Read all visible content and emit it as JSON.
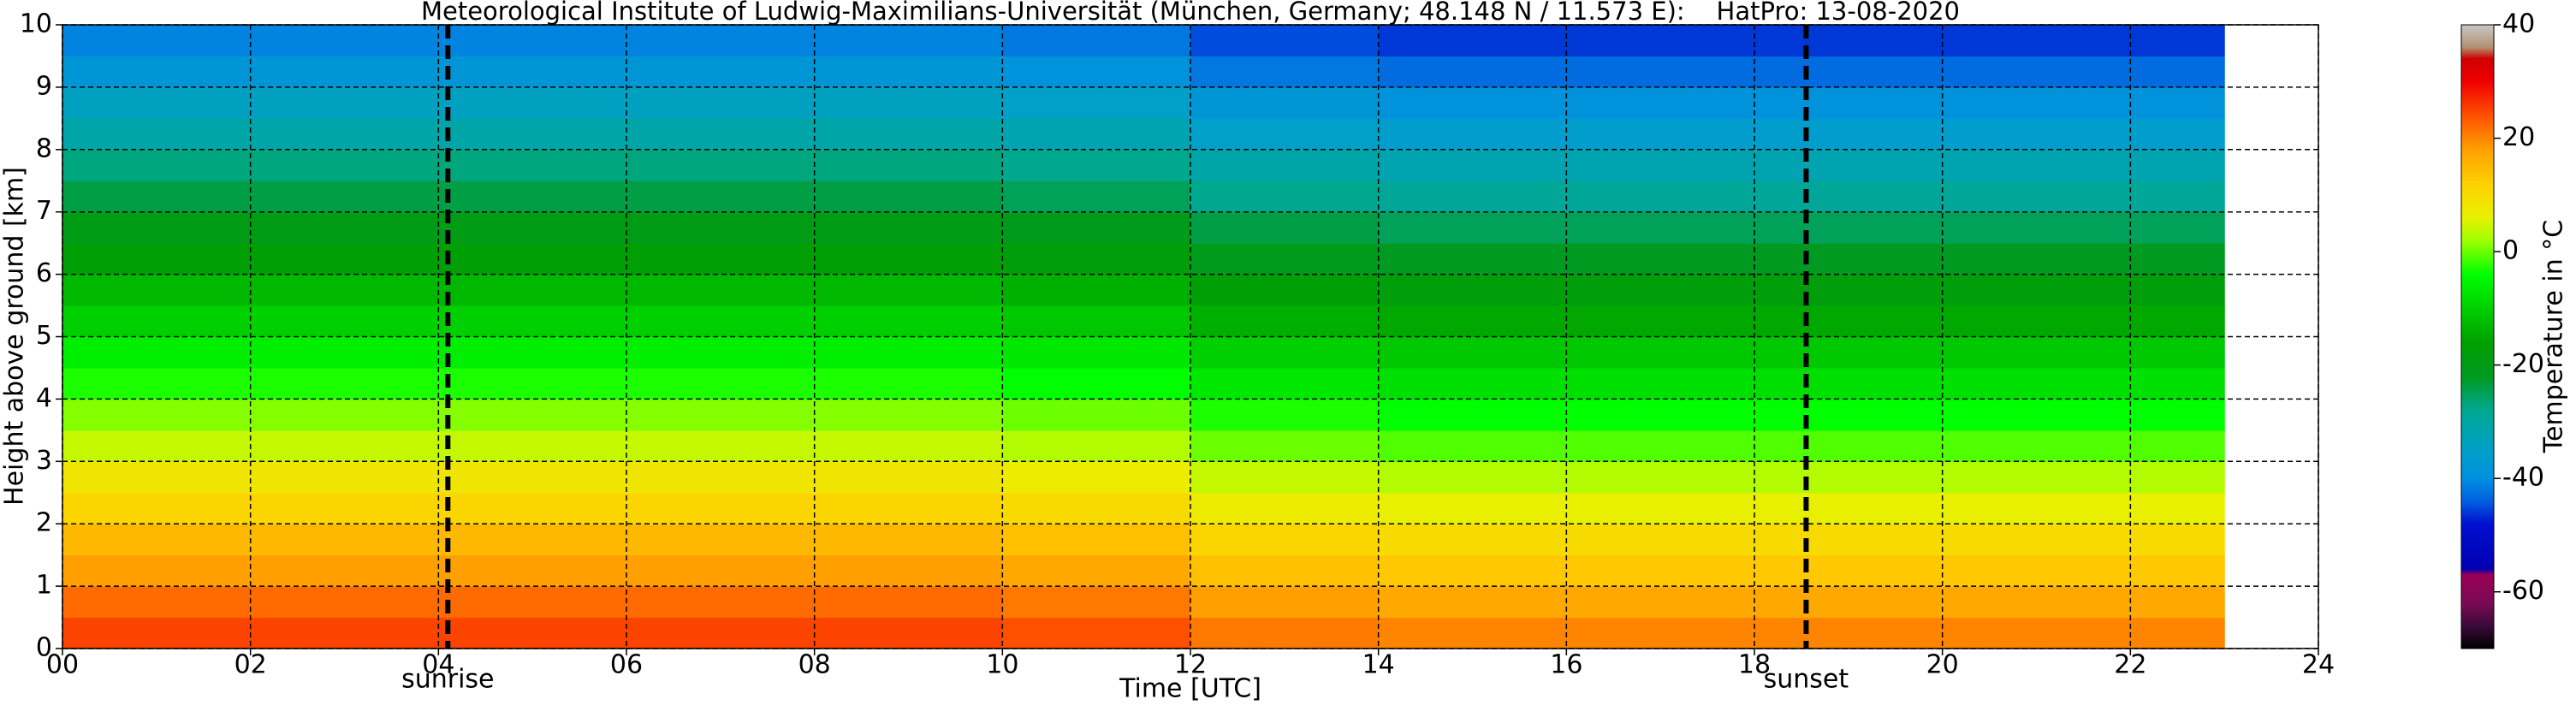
{
  "chart_data": {
    "type": "heatmap",
    "title": "Meteorological Institute of Ludwig-Maximilians-Universität (München, Germany; 48.148 N / 11.573 E):    HatPro: 13-08-2020",
    "x_label": "Time [UTC]",
    "y_label": "Height above ground [km]",
    "colorbar_label": "Temperature in °C",
    "xlim": [
      0,
      24
    ],
    "ylim": [
      0,
      10
    ],
    "clim": [
      -70,
      40
    ],
    "xticks": [
      {
        "value": 0,
        "label": "00"
      },
      {
        "value": 2,
        "label": "02"
      },
      {
        "value": 4,
        "label": "04"
      },
      {
        "value": 6,
        "label": "06"
      },
      {
        "value": 8,
        "label": "08"
      },
      10,
      12,
      14,
      16,
      18,
      20,
      22,
      24
    ],
    "yticks": [
      0,
      1,
      2,
      3,
      4,
      5,
      6,
      7,
      8,
      9,
      10
    ],
    "cticks": [
      40,
      20,
      0,
      -20,
      -40,
      -60
    ],
    "grid": true,
    "x_edges": [
      0,
      2,
      4,
      6,
      8,
      10,
      12,
      14,
      16,
      18,
      20,
      22,
      23
    ],
    "y_edges": [
      0,
      0.5,
      1,
      1.5,
      2,
      2.5,
      3,
      3.5,
      4,
      4.5,
      5,
      5.5,
      6,
      6.5,
      7,
      7.5,
      8,
      8.5,
      9,
      9.5,
      10
    ],
    "z": [
      [
        25,
        25,
        25,
        25,
        25,
        24,
        21,
        20,
        20,
        20,
        20,
        20
      ],
      [
        22,
        22,
        22,
        22,
        22,
        21,
        18,
        17,
        17,
        17,
        17,
        17
      ],
      [
        18,
        18,
        18,
        18,
        18,
        17,
        14,
        13,
        13,
        13,
        13,
        13
      ],
      [
        15,
        15,
        15,
        15,
        15,
        14,
        11,
        10,
        10,
        10,
        10,
        10
      ],
      [
        11,
        11,
        11,
        11,
        11,
        10,
        7,
        6,
        6,
        6,
        6,
        6
      ],
      [
        8,
        8,
        8,
        8,
        8,
        7,
        4,
        3,
        3,
        3,
        3,
        3
      ],
      [
        4,
        4,
        4,
        4,
        4,
        3,
        0,
        -1,
        -1,
        -1,
        -1,
        -1
      ],
      [
        1,
        1,
        1,
        1,
        1,
        0,
        -3,
        -4,
        -4,
        -4,
        -4,
        -4
      ],
      [
        -3,
        -3,
        -3,
        -3,
        -3,
        -4,
        -7,
        -8,
        -8,
        -8,
        -8,
        -8
      ],
      [
        -6,
        -6,
        -6,
        -6,
        -6,
        -7,
        -10,
        -11,
        -11,
        -11,
        -11,
        -11
      ],
      [
        -10,
        -10,
        -10,
        -10,
        -10,
        -11,
        -14,
        -15,
        -15,
        -15,
        -15,
        -15
      ],
      [
        -13,
        -13,
        -13,
        -13,
        -13,
        -14,
        -17,
        -18,
        -18,
        -18,
        -18,
        -18
      ],
      [
        -17,
        -17,
        -17,
        -17,
        -17,
        -18,
        -21,
        -22,
        -22,
        -22,
        -22,
        -22
      ],
      [
        -20,
        -20,
        -20,
        -20,
        -20,
        -21,
        -24,
        -25,
        -25,
        -25,
        -25,
        -25
      ],
      [
        -24,
        -24,
        -24,
        -24,
        -24,
        -25,
        -28,
        -29,
        -29,
        -29,
        -29,
        -29
      ],
      [
        -27,
        -27,
        -27,
        -27,
        -27,
        -28,
        -31,
        -32,
        -32,
        -32,
        -32,
        -32
      ],
      [
        -31,
        -31,
        -31,
        -31,
        -31,
        -32,
        -35,
        -36,
        -36,
        -36,
        -36,
        -36
      ],
      [
        -34,
        -34,
        -34,
        -34,
        -34,
        -35,
        -38,
        -39,
        -39,
        -39,
        -39,
        -39
      ],
      [
        -38,
        -38,
        -38,
        -38,
        -38,
        -39,
        -42,
        -43,
        -43,
        -43,
        -43,
        -43
      ],
      [
        -41,
        -41,
        -41,
        -41,
        -41,
        -42,
        -45,
        -46,
        -46,
        -46,
        -46,
        -46
      ]
    ],
    "colormap": [
      [
        -70,
        "#000000"
      ],
      [
        -66,
        "#3a0a3a"
      ],
      [
        -62,
        "#7a0a55"
      ],
      [
        -57,
        "#990055"
      ],
      [
        -56,
        "#0000b0"
      ],
      [
        -48,
        "#0010d0"
      ],
      [
        -44,
        "#0060e0"
      ],
      [
        -40,
        "#0090e0"
      ],
      [
        -35,
        "#00a0c8"
      ],
      [
        -28,
        "#00a890"
      ],
      [
        -22,
        "#009a20"
      ],
      [
        -16,
        "#00a000"
      ],
      [
        -10,
        "#00d000"
      ],
      [
        -4,
        "#00ff00"
      ],
      [
        2,
        "#a0ff00"
      ],
      [
        6,
        "#e8f000"
      ],
      [
        12,
        "#ffd000"
      ],
      [
        18,
        "#ffa000"
      ],
      [
        24,
        "#ff5000"
      ],
      [
        30,
        "#f00000"
      ],
      [
        34,
        "#d00000"
      ],
      [
        36,
        "#b09070"
      ],
      [
        40,
        "#c8c8c8"
      ]
    ],
    "annotations": [
      {
        "x": 4.1,
        "label": "sunrise"
      },
      {
        "x": 18.55,
        "label": "sunset"
      }
    ]
  }
}
